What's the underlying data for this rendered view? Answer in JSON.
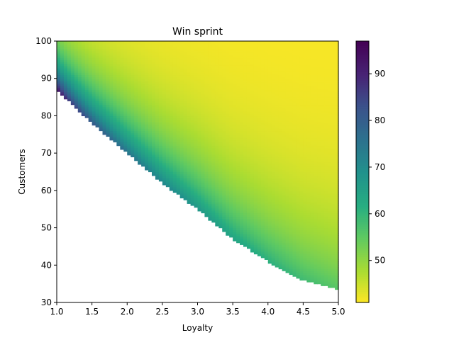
{
  "chart_data": {
    "type": "heatmap",
    "title": "Win sprint",
    "xlabel": "Loyalty",
    "ylabel": "Customers",
    "xlim": [
      1.0,
      5.0
    ],
    "ylim": [
      30,
      100
    ],
    "x_ticks": [
      "1.0",
      "1.5",
      "2.0",
      "2.5",
      "3.0",
      "3.5",
      "4.0",
      "4.5",
      "5.0"
    ],
    "y_ticks": [
      "30",
      "40",
      "50",
      "60",
      "70",
      "80",
      "90",
      "100"
    ],
    "grid_resolution": [
      80,
      140
    ],
    "colormap": "viridis_r",
    "color_range": [
      41,
      97
    ],
    "colorbar_ticks": [
      "50",
      "60",
      "70",
      "80",
      "90"
    ],
    "colorbar_tick_values": [
      50,
      60,
      70,
      80,
      90
    ],
    "masked_region": "below lower boundary curve (blank)",
    "boundary_curve": {
      "x": [
        1.0,
        1.5,
        2.0,
        2.5,
        3.0,
        3.5,
        4.0,
        4.5,
        5.0
      ],
      "y": [
        87,
        78,
        70,
        62,
        55,
        47,
        41,
        36,
        33.5
      ]
    },
    "sample_values": [
      {
        "x": 1.0,
        "y": 87,
        "value": 96
      },
      {
        "x": 1.0,
        "y": 100,
        "value": 67
      },
      {
        "x": 1.5,
        "y": 100,
        "value": 60
      },
      {
        "x": 2.0,
        "y": 70,
        "value": 68
      },
      {
        "x": 3.0,
        "y": 55,
        "value": 63
      },
      {
        "x": 4.0,
        "y": 41,
        "value": 58
      },
      {
        "x": 5.0,
        "y": 34,
        "value": 56
      },
      {
        "x": 5.0,
        "y": 100,
        "value": 41
      }
    ],
    "grid": false
  }
}
